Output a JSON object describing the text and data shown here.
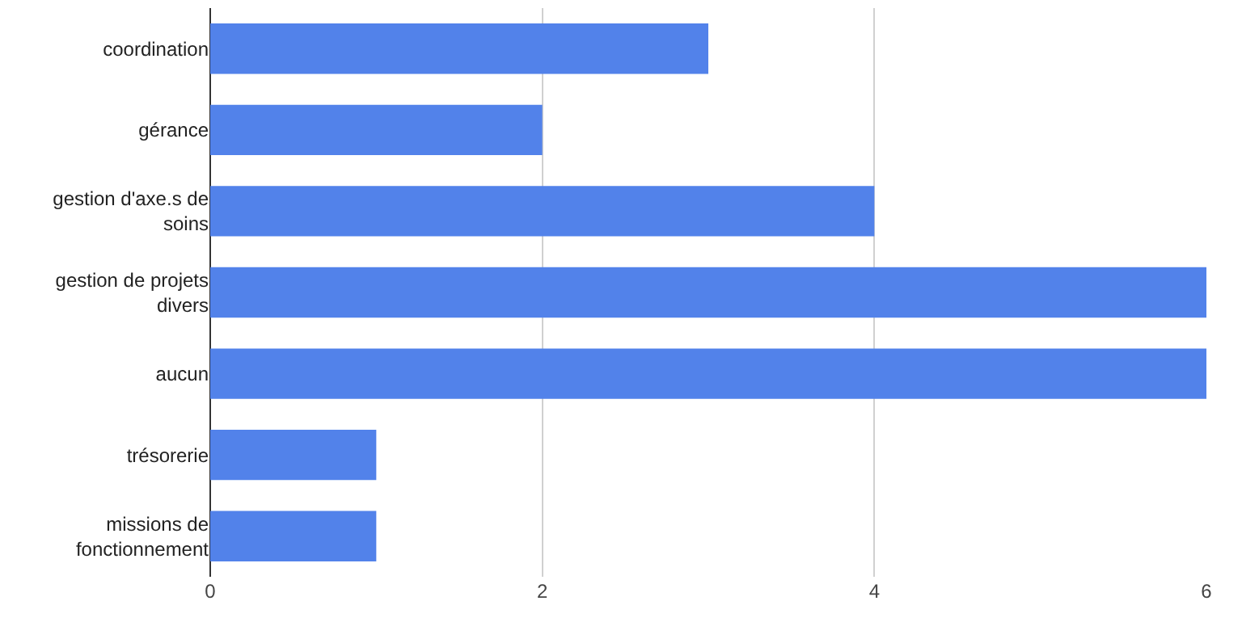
{
  "chart_data": {
    "type": "bar",
    "orientation": "horizontal",
    "categories": [
      "coordination",
      "gérance",
      "gestion d'axe.s de soins",
      "gestion de projets divers",
      "aucun",
      "trésorerie",
      "missions de fonctionnement"
    ],
    "values": [
      3,
      2,
      4,
      6,
      6,
      1,
      1
    ],
    "color": "#5282ea",
    "xlim": [
      0,
      6
    ],
    "xticks": [
      0,
      2,
      4,
      6
    ],
    "grid": "x"
  }
}
